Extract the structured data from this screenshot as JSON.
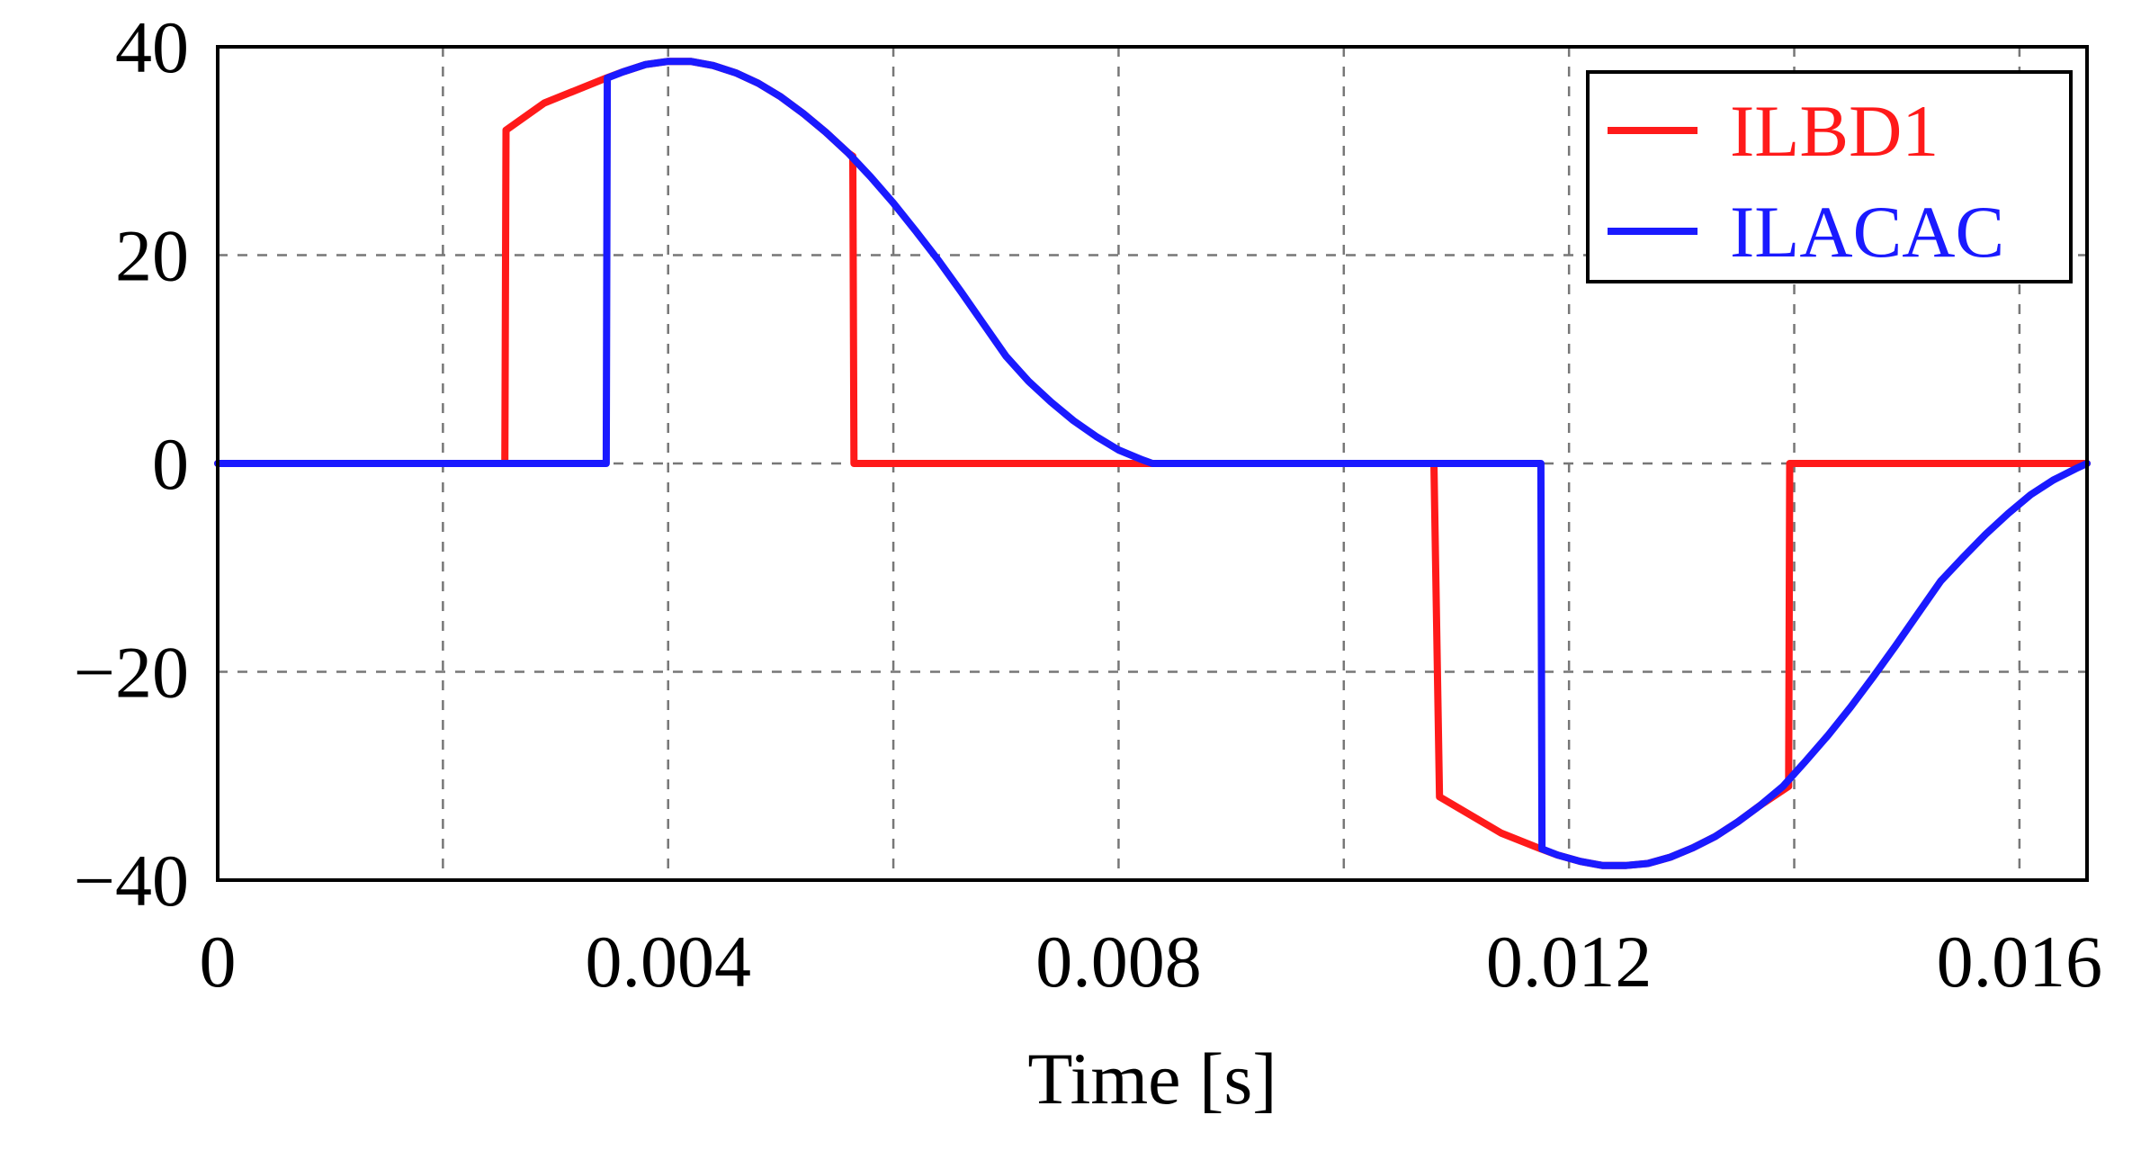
{
  "chart_data": {
    "type": "line",
    "title": "",
    "xlabel": "Time [s]",
    "ylabel": "",
    "xlim": [
      0,
      0.0166
    ],
    "ylim": [
      -40,
      40
    ],
    "x_ticks": [
      0,
      0.004,
      0.008,
      0.012,
      0.016
    ],
    "x_tick_labels": [
      "0",
      "0.004",
      "0.008",
      "0.012",
      "0.016"
    ],
    "x_grid": [
      0,
      0.002,
      0.004,
      0.006,
      0.008,
      0.01,
      0.012,
      0.014,
      0.016
    ],
    "y_ticks": [
      40,
      20,
      0,
      -20,
      -40
    ],
    "y_tick_labels": [
      "40",
      "20",
      "0",
      "−20",
      "−40"
    ],
    "grid": true,
    "grid_style": "dashed",
    "legend_position": "top-right",
    "series": [
      {
        "name": "ILBD1",
        "color": "#ff1a1a",
        "x": [
          0,
          0.00255,
          0.00256,
          0.0029,
          0.00345,
          0.0036,
          0.0038,
          0.004,
          0.0042,
          0.0044,
          0.0046,
          0.0048,
          0.005,
          0.0052,
          0.0054,
          0.0056,
          0.00564,
          0.00565,
          0.0083,
          0.0083,
          0.0093,
          0.0093,
          0.0108,
          0.01085,
          0.0114,
          0.01175,
          0.0119,
          0.0121,
          0.0123,
          0.0125,
          0.0127,
          0.0129,
          0.0131,
          0.0133,
          0.0135,
          0.0137,
          0.01395,
          0.01396,
          0.0166
        ],
        "y": [
          0,
          0,
          32.0,
          34.6,
          37.0,
          37.6,
          38.3,
          38.6,
          38.6,
          38.2,
          37.5,
          36.5,
          35.2,
          33.6,
          31.8,
          29.8,
          29.5,
          0,
          0,
          0,
          0,
          0,
          0,
          -32.0,
          -35.5,
          -37.0,
          -37.6,
          -38.2,
          -38.6,
          -38.6,
          -38.4,
          -37.8,
          -36.9,
          -35.8,
          -34.4,
          -32.8,
          -31.0,
          0,
          0
        ]
      },
      {
        "name": "ILACAC",
        "color": "#1a1aff",
        "x": [
          0,
          0.00345,
          0.00346,
          0.0036,
          0.0038,
          0.004,
          0.0042,
          0.0044,
          0.0046,
          0.0048,
          0.005,
          0.0052,
          0.0054,
          0.0056,
          0.0058,
          0.006,
          0.0062,
          0.0064,
          0.0066,
          0.0068,
          0.007,
          0.0072,
          0.0074,
          0.0076,
          0.0078,
          0.008,
          0.0082,
          0.0083,
          0.01175,
          0.01176,
          0.0119,
          0.0121,
          0.0123,
          0.0125,
          0.0127,
          0.0129,
          0.0131,
          0.0133,
          0.0135,
          0.0137,
          0.0139,
          0.0141,
          0.0143,
          0.0145,
          0.0147,
          0.0149,
          0.0151,
          0.0153,
          0.0155,
          0.0157,
          0.0159,
          0.0161,
          0.0163,
          0.0165,
          0.0166
        ],
        "y": [
          0,
          0,
          37.0,
          37.6,
          38.3,
          38.6,
          38.6,
          38.2,
          37.5,
          36.5,
          35.2,
          33.6,
          31.8,
          29.8,
          27.5,
          25.0,
          22.3,
          19.5,
          16.5,
          13.4,
          10.3,
          7.9,
          5.9,
          4.1,
          2.6,
          1.3,
          0.4,
          0,
          0,
          -37.0,
          -37.6,
          -38.2,
          -38.6,
          -38.6,
          -38.4,
          -37.8,
          -36.9,
          -35.8,
          -34.4,
          -32.8,
          -31.0,
          -28.6,
          -26.1,
          -23.4,
          -20.5,
          -17.5,
          -14.4,
          -11.3,
          -9.0,
          -6.8,
          -4.8,
          -3.0,
          -1.6,
          -0.5,
          0
        ]
      }
    ]
  }
}
